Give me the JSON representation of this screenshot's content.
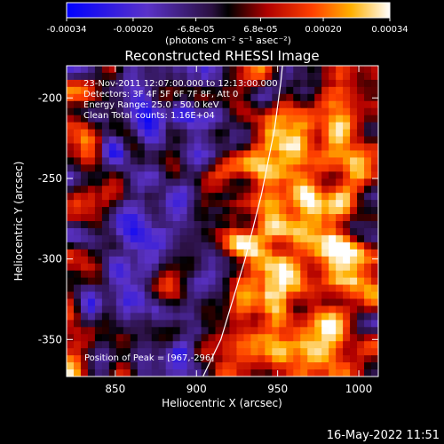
{
  "chart_data": {
    "type": "heatmap",
    "title": "Reconstructed RHESSI Image",
    "xlabel": "Heliocentric X (arcsec)",
    "ylabel": "Heliocentric Y (arcsec)",
    "xlim": [
      820,
      1012
    ],
    "ylim": [
      -373,
      -180
    ],
    "xticks": [
      850,
      900,
      950,
      1000
    ],
    "yticks": [
      -200,
      -250,
      -300,
      -350
    ],
    "colorbar": {
      "min": -0.00034,
      "max": 0.00034,
      "ticks": [
        -0.00034,
        -0.0002,
        -6.8e-05,
        6.8e-05,
        0.0002,
        0.00034
      ],
      "tick_labels": [
        "-0.00034",
        "-0.00020",
        "-6.8e-05",
        "6.8e-05",
        "0.00020",
        "0.00034"
      ],
      "label": "(photons cm⁻² s⁻¹ asec⁻²)",
      "colormap": "blue-purple-black-red-orange-yellow-white"
    },
    "annotations": [
      "23-Nov-2011 12:07:00.000 to 12:13:00.000",
      "Detectors: 3F 4F 5F 6F 7F 8F, Att 0",
      "Energy Range: 25.0 - 50.0 keV",
      "Clean    Total counts: 1.16E+04"
    ],
    "peak_label": "Position of Peak = [967,-296]",
    "peak": [
      967,
      -296
    ],
    "limb_curve": [
      [
        904,
        -373
      ],
      [
        915,
        -350
      ],
      [
        930,
        -300
      ],
      [
        940,
        -260
      ],
      [
        948,
        -220
      ],
      [
        952,
        -190
      ],
      [
        953,
        -180
      ]
    ]
  },
  "footer": {
    "timestamp": "16-May-2022 11:51"
  },
  "colors": {
    "background": "#000000",
    "foreground": "#ffffff"
  }
}
